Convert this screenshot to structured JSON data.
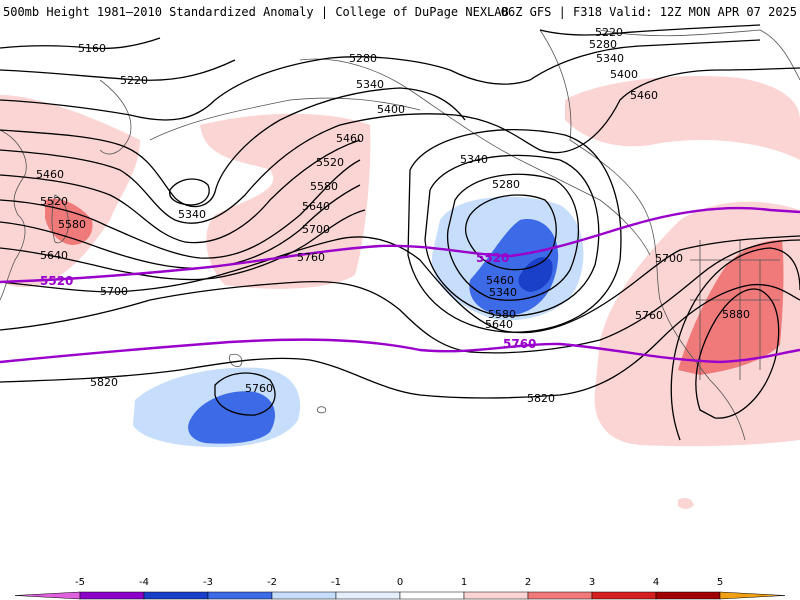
{
  "header": {
    "left": "500mb Height 1981–2010 Standardized Anomaly | College of DuPage NEXLAB",
    "right": "06Z GFS | F318 Valid: 12Z MON APR 07 2025"
  },
  "colors": {
    "anom_neg5": "#e060e0",
    "anom_neg4": "#8a00c8",
    "anom_neg3": "#1a3fc8",
    "anom_neg2": "#3d6ae6",
    "anom_neg1": "#c6defb",
    "anom_pos1": "#fbd4d4",
    "anom_pos2": "#f07a7a",
    "anom_pos3": "#d42020",
    "anom_pos4": "#a00000",
    "anom_pos5": "#f0a010",
    "highlight_contour": "#9a00cc",
    "contour": "#000000",
    "coast": "#555555"
  },
  "contour_labels": [
    {
      "id": "c5160",
      "text": "5160"
    },
    {
      "id": "c5220a",
      "text": "5220"
    },
    {
      "id": "c5220b",
      "text": "5220"
    },
    {
      "id": "c5280a",
      "text": "5280"
    },
    {
      "id": "c5280b",
      "text": "5280"
    },
    {
      "id": "c5280c",
      "text": "5280"
    },
    {
      "id": "c5340a",
      "text": "5340"
    },
    {
      "id": "c5340b",
      "text": "5340"
    },
    {
      "id": "c5340c",
      "text": "5340"
    },
    {
      "id": "c5340d",
      "text": "5340"
    },
    {
      "id": "c5340e",
      "text": "5340"
    },
    {
      "id": "c5400a",
      "text": "5400"
    },
    {
      "id": "c5400b",
      "text": "5400"
    },
    {
      "id": "c5460a",
      "text": "5460"
    },
    {
      "id": "c5460b",
      "text": "5460"
    },
    {
      "id": "c5460c",
      "text": "5460"
    },
    {
      "id": "c5460d",
      "text": "5460"
    },
    {
      "id": "c5520a",
      "text": "5520"
    },
    {
      "id": "c5520b",
      "text": "5520"
    },
    {
      "id": "c5580a",
      "text": "5580"
    },
    {
      "id": "c5580b",
      "text": "5580"
    },
    {
      "id": "c5580c",
      "text": "5580"
    },
    {
      "id": "c5640a",
      "text": "5640"
    },
    {
      "id": "c5640b",
      "text": "5640"
    },
    {
      "id": "c5640c",
      "text": "5640"
    },
    {
      "id": "c5700a",
      "text": "5700"
    },
    {
      "id": "c5700b",
      "text": "5700"
    },
    {
      "id": "c5700c",
      "text": "5700"
    },
    {
      "id": "c5760a",
      "text": "5760"
    },
    {
      "id": "c5760b",
      "text": "5760"
    },
    {
      "id": "c5760c",
      "text": "5760"
    },
    {
      "id": "c5820a",
      "text": "5820"
    },
    {
      "id": "c5820b",
      "text": "5820"
    },
    {
      "id": "c5880",
      "text": "5880"
    }
  ],
  "highlight_labels": {
    "h5520": "5520",
    "h5520w": "5520",
    "h5760": "5760"
  },
  "colorbar": {
    "ticks": [
      "-5",
      "-4",
      "-3",
      "-2",
      "-1",
      "0",
      "1",
      "2",
      "3",
      "4",
      "5"
    ]
  }
}
